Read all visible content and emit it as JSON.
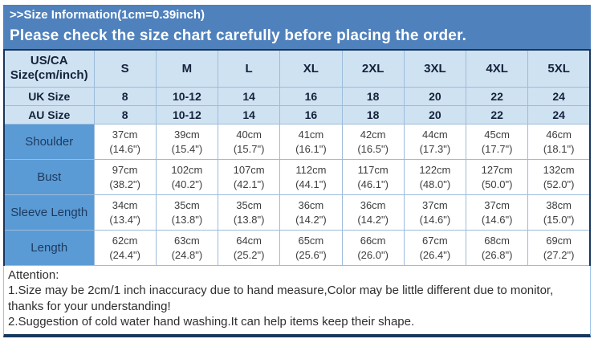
{
  "banner": {
    "title": ">>Size Information(1cm=0.39inch)",
    "subtitle": "Please check the size chart carefully before placing the order."
  },
  "table": {
    "corner": {
      "line1": "US/CA",
      "line2": "Size(cm/inch)"
    },
    "sizes": [
      "S",
      "M",
      "L",
      "XL",
      "2XL",
      "3XL",
      "4XL",
      "5XL"
    ],
    "size_rows": [
      {
        "label": "UK Size",
        "values": [
          "8",
          "10-12",
          "14",
          "16",
          "18",
          "20",
          "22",
          "24"
        ]
      },
      {
        "label": "AU Size",
        "values": [
          "8",
          "10-12",
          "14",
          "16",
          "18",
          "20",
          "22",
          "24"
        ]
      }
    ],
    "measurements": [
      {
        "label": "Shoulder",
        "cm": [
          "37cm",
          "39cm",
          "40cm",
          "41cm",
          "42cm",
          "44cm",
          "45cm",
          "46cm"
        ],
        "inch": [
          "(14.6\")",
          "(15.4\")",
          "(15.7\")",
          "(16.1\")",
          "(16.5\")",
          "(17.3\")",
          "(17.7\")",
          "(18.1\")"
        ]
      },
      {
        "label": "Bust",
        "cm": [
          "97cm",
          "102cm",
          "107cm",
          "112cm",
          "117cm",
          "122cm",
          "127cm",
          "132cm"
        ],
        "inch": [
          "(38.2\")",
          "(40.2\")",
          "(42.1\")",
          "(44.1\")",
          "(46.1\")",
          "(48.0\")",
          "(50.0\")",
          "(52.0\")"
        ]
      },
      {
        "label": "Sleeve Length",
        "cm": [
          "34cm",
          "35cm",
          "35cm",
          "36cm",
          "36cm",
          "37cm",
          "37cm",
          "38cm"
        ],
        "inch": [
          "(13.4\")",
          "(13.8\")",
          "(13.8\")",
          "(14.2\")",
          "(14.2\")",
          "(14.6\")",
          "(14.6\")",
          "(15.0\")"
        ]
      },
      {
        "label": "Length",
        "cm": [
          "62cm",
          "63cm",
          "64cm",
          "65cm",
          "66cm",
          "67cm",
          "68cm",
          "69cm"
        ],
        "inch": [
          "(24.4\")",
          "(24.8\")",
          "(25.2\")",
          "(25.6\")",
          "(26.0\")",
          "(26.4\")",
          "(26.8\")",
          "(27.2\")"
        ]
      }
    ]
  },
  "attention": {
    "heading": "Attention:",
    "note1": "1.Size may be 2cm/1 inch inaccuracy due to hand measure,Color may be little different due to monitor, thanks for your understanding!",
    "note2": "2.Suggestion of cold water hand washing.It can help items keep their shape."
  },
  "colors": {
    "banner_blue": "#4f81bd",
    "row_header_blue": "#5b9bd5",
    "light_blue_cell": "#cfe2f2",
    "border_navy": "#17375e",
    "grid_line": "#9cbcdb"
  }
}
